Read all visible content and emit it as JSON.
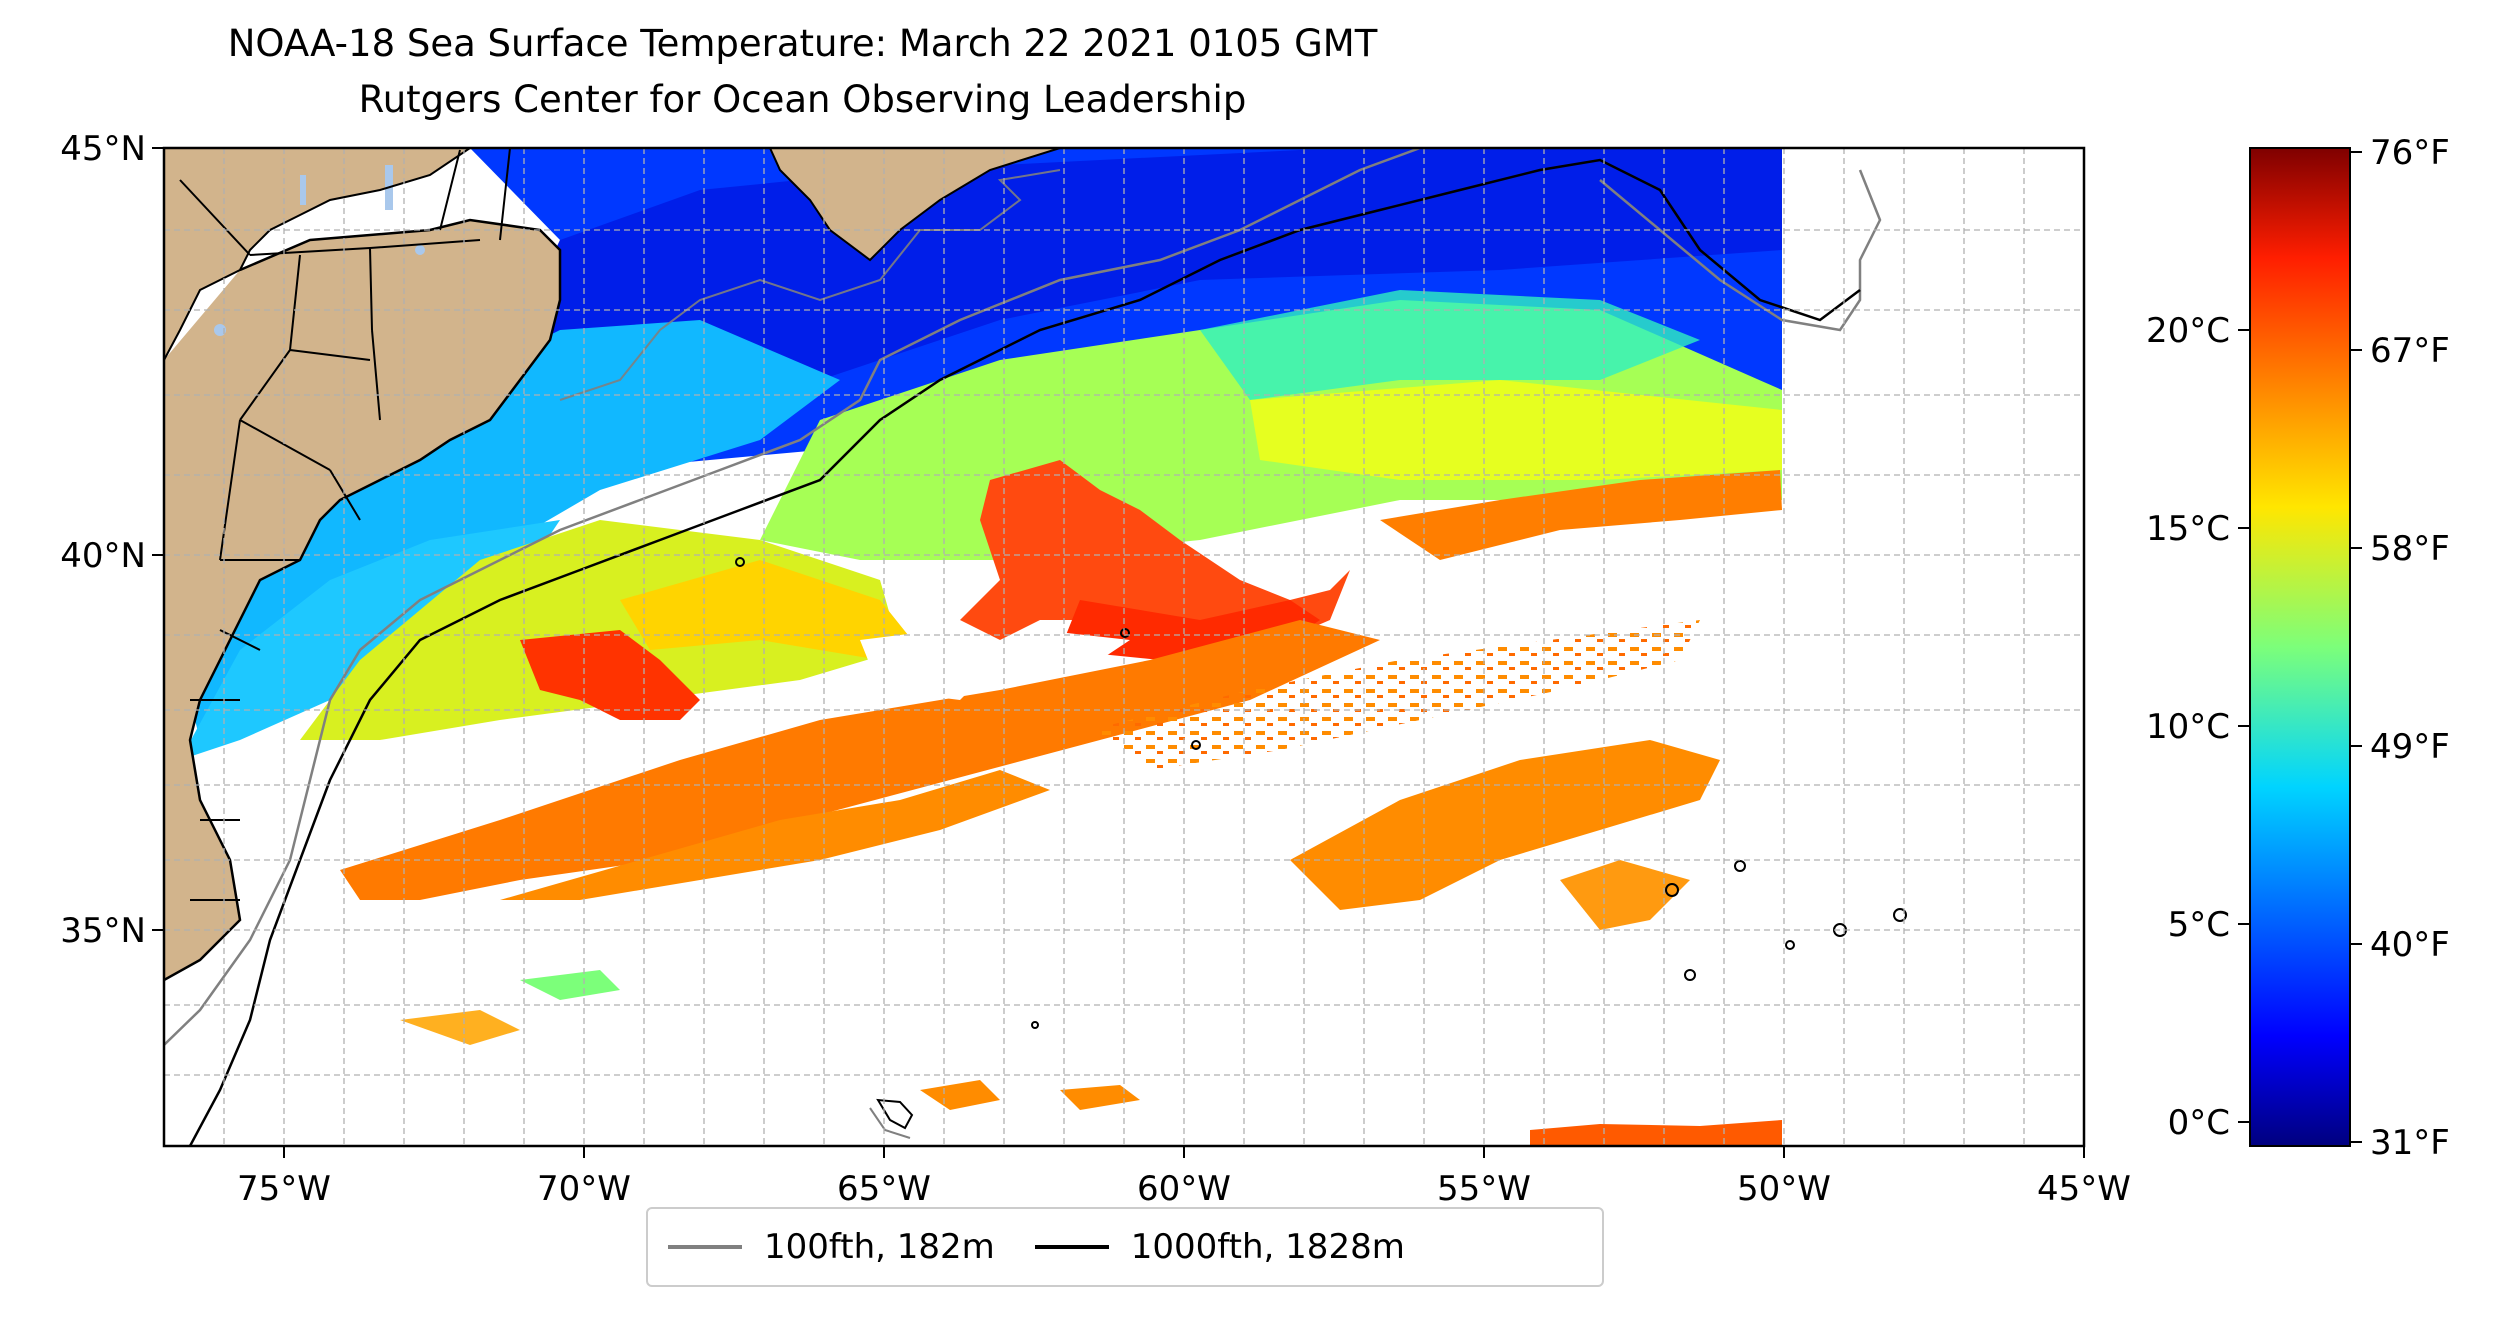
{
  "title_line1": "NOAA-18 Sea Surface Temperature: March 22 2021 0105 GMT",
  "title_line2": "Rutgers Center for Ocean Observing Leadership",
  "map": {
    "lon_ticks": [
      "75°W",
      "70°W",
      "65°W",
      "60°W",
      "55°W",
      "50°W",
      "45°W"
    ],
    "lat_ticks": [
      "45°N",
      "40°N",
      "35°N"
    ],
    "extent": {
      "lon_min": -77,
      "lon_max": -45,
      "lat_min": 32.3,
      "lat_max": 45
    },
    "gridlines": "dashed gray",
    "land_color": "#d2b48c",
    "water_color": "#a9c8ec"
  },
  "legend": {
    "placement": "bottom-center",
    "items": [
      {
        "label": "100fth, 182m",
        "color": "#808080"
      },
      {
        "label": "1000fth, 1828m",
        "color": "#000000"
      }
    ]
  },
  "colorbar": {
    "colormap": "jet",
    "celsius_ticks": [
      "20°C",
      "15°C",
      "10°C",
      "5°C",
      "0°C"
    ],
    "fahrenheit_ticks": [
      "76°F",
      "67°F",
      "58°F",
      "49°F",
      "40°F",
      "31°F"
    ]
  }
}
